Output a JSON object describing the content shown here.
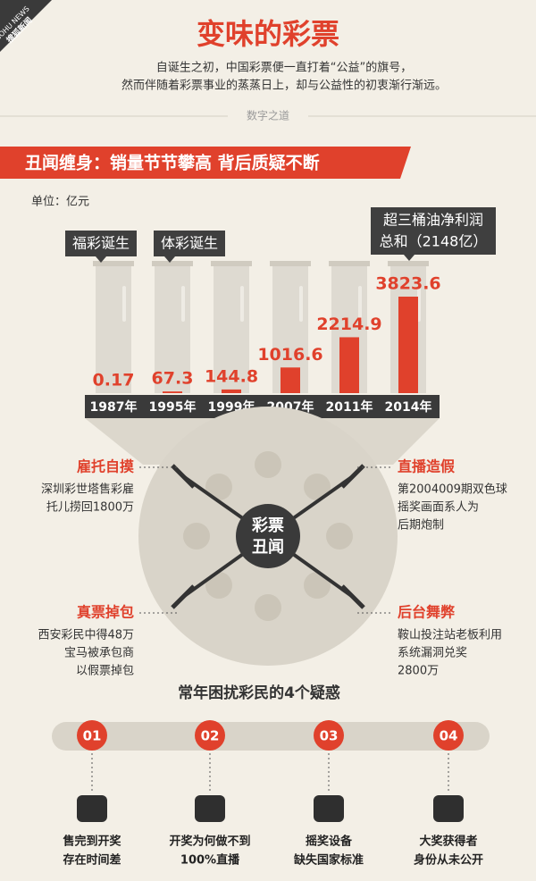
{
  "logo": {
    "brand": "SOHU NEWS",
    "name": "搜狐新闻"
  },
  "header": {
    "title": "变味的彩票",
    "subtitle": [
      "自诞生之初，中国彩票便一直打着“公益”的旗号，",
      "然而伴随着彩票事业的蒸蒸日上，却与公益性的初衷渐行渐远。"
    ],
    "section_tag": "数字之道"
  },
  "banner": "丑闻缠身：销量节节攀高 背后质疑不断",
  "chart_data": {
    "type": "bar",
    "unit": "单位：亿元",
    "categories": [
      "1987年",
      "1995年",
      "1999年",
      "2007年",
      "2011年",
      "2014年"
    ],
    "values": [
      0.17,
      67.3,
      144.8,
      1016.6,
      2214.9,
      3823.6
    ],
    "color": "#e0412c",
    "annotations": [
      [
        "福彩诞生"
      ],
      [
        "体彩诞生"
      ],
      [
        "超三桶油净利润",
        "总和（2148亿）"
      ]
    ]
  },
  "scandals": {
    "center": [
      "彩票",
      "丑闻"
    ],
    "items": [
      {
        "title": "雇托自摸",
        "lines": [
          "深圳彩世塔售彩雇",
          "托儿捞回1800万"
        ]
      },
      {
        "title": "直播造假",
        "lines": [
          "第2004009期双色球",
          "摇奖画面系人为",
          "后期炮制"
        ]
      },
      {
        "title": "真票掉包",
        "lines": [
          "西安彩民中得48万",
          "宝马被承包商",
          "以假票掉包"
        ]
      },
      {
        "title": "后台舞弊",
        "lines": [
          "鞍山投注站老板利用",
          "系统漏洞兑奖",
          "2800万"
        ]
      }
    ]
  },
  "doubts": {
    "title": "常年困扰彩民的4个疑惑",
    "items": [
      {
        "number": "01",
        "lines": [
          "售完到开奖",
          "存在时间差"
        ]
      },
      {
        "number": "02",
        "lines": [
          "开奖为何做不到",
          "100%直播"
        ]
      },
      {
        "number": "03",
        "lines": [
          "摇奖设备",
          "缺失国家标准"
        ]
      },
      {
        "number": "04",
        "lines": [
          "大奖获得者",
          "身份从未公开"
        ]
      }
    ]
  }
}
